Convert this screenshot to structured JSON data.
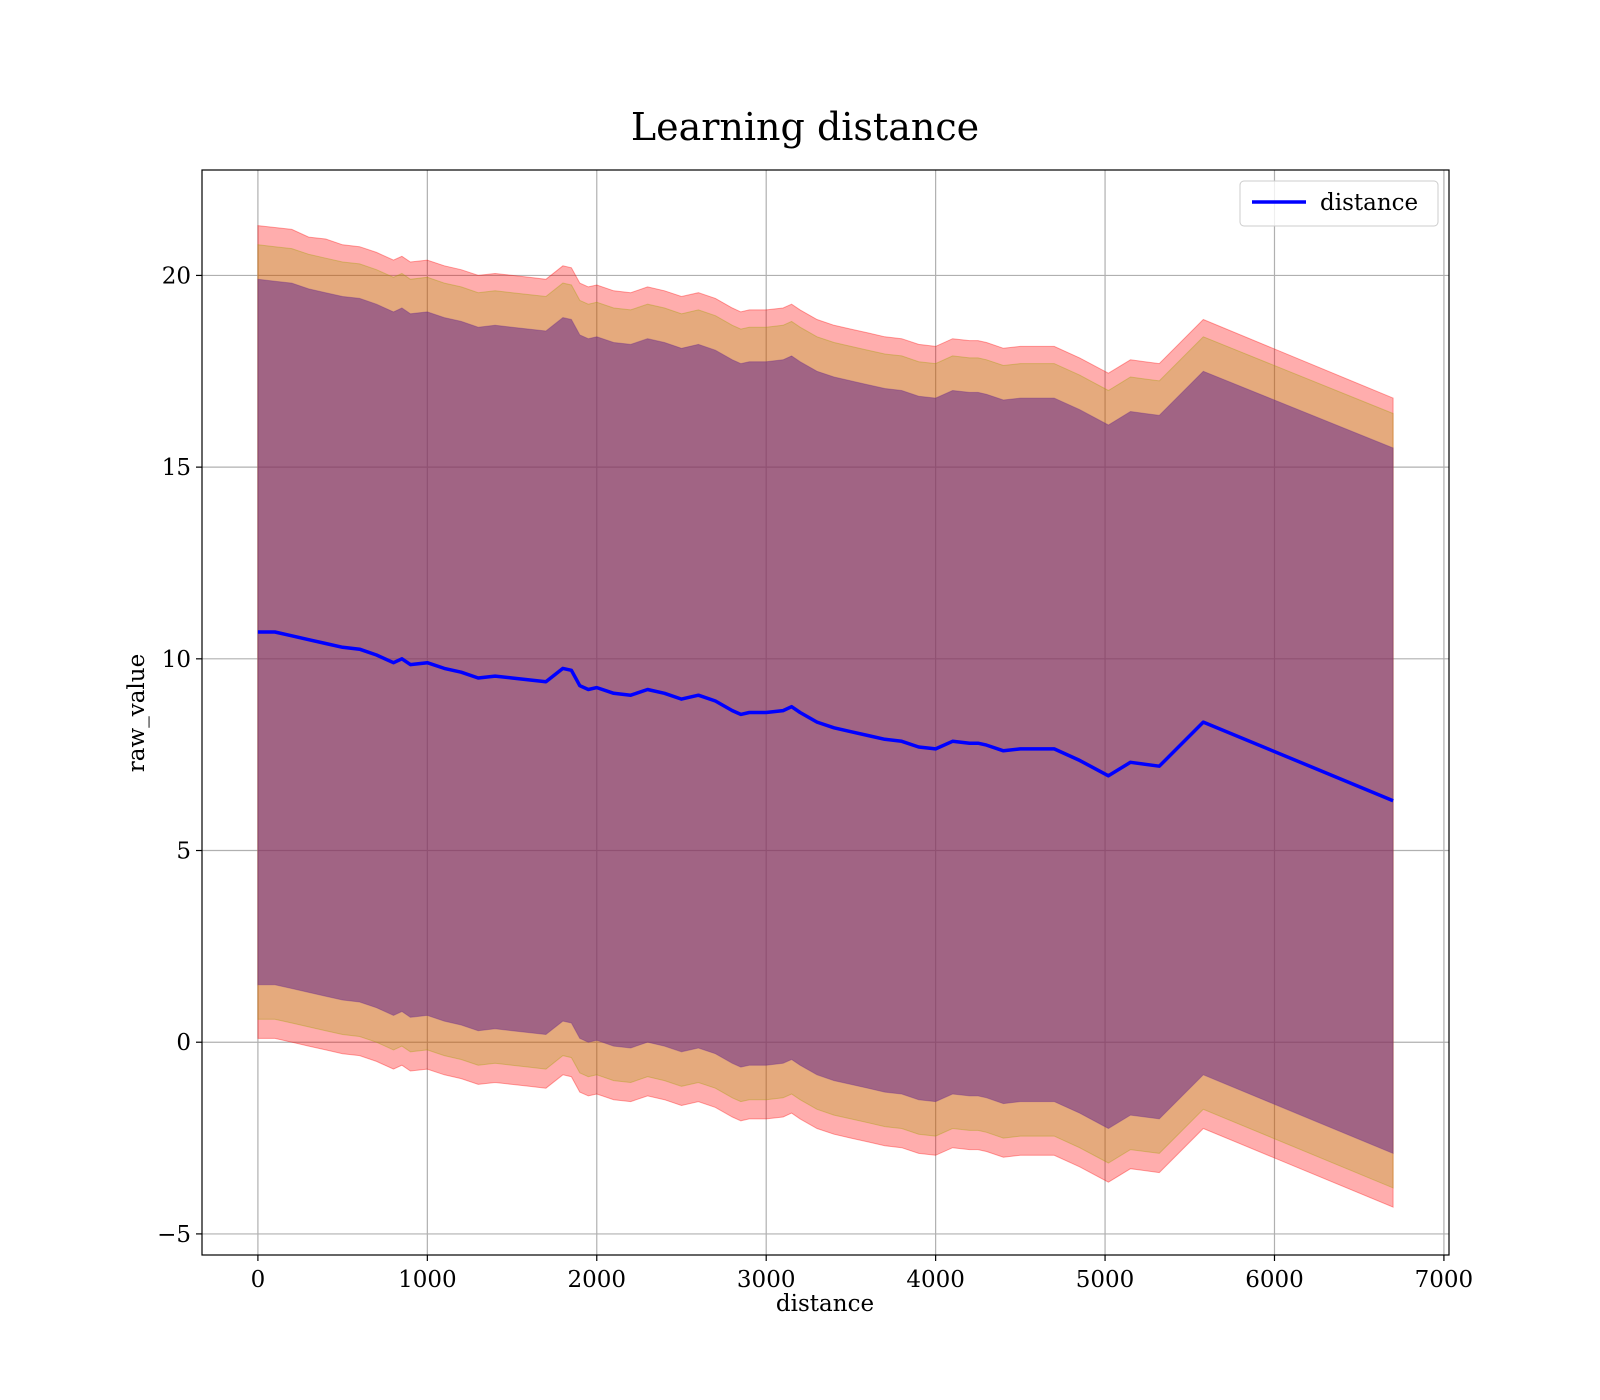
{
  "chart_data": {
    "type": "line",
    "title": "Learning distance",
    "xlabel": "distance",
    "ylabel": "raw_value",
    "xlim": [
      -330,
      7030
    ],
    "ylim": [
      -5.55,
      22.75
    ],
    "xticks": [
      0,
      1000,
      2000,
      3000,
      4000,
      5000,
      6000,
      7000
    ],
    "yticks": [
      -5,
      0,
      5,
      10,
      15,
      20
    ],
    "xtick_labels": [
      "0",
      "1000",
      "2000",
      "3000",
      "4000",
      "5000",
      "6000",
      "7000"
    ],
    "ytick_labels": [
      "−5",
      "0",
      "5",
      "10",
      "15",
      "20"
    ],
    "grid": true,
    "legend": {
      "position": "top-right",
      "entries": [
        "distance"
      ]
    },
    "colors": {
      "line": "#0000ff",
      "band_outer": "#ff0000",
      "band_mid": "#a0a000",
      "band_inner": "#6a2a8a"
    },
    "series": [
      {
        "name": "distance",
        "x": [
          0,
          100,
          200,
          300,
          400,
          500,
          600,
          700,
          800,
          850,
          900,
          1000,
          1100,
          1200,
          1300,
          1400,
          1500,
          1600,
          1700,
          1800,
          1850,
          1900,
          1950,
          2000,
          2100,
          2200,
          2300,
          2400,
          2500,
          2600,
          2700,
          2800,
          2850,
          2900,
          3000,
          3100,
          3150,
          3200,
          3300,
          3400,
          3500,
          3600,
          3700,
          3800,
          3900,
          4000,
          4100,
          4200,
          4250,
          4300,
          4400,
          4500,
          4600,
          4700,
          4850,
          5020,
          5150,
          5320,
          5580,
          6700
        ],
        "values": [
          10.7,
          10.7,
          10.6,
          10.5,
          10.4,
          10.3,
          10.25,
          10.1,
          9.9,
          10.0,
          9.85,
          9.9,
          9.75,
          9.65,
          9.5,
          9.55,
          9.5,
          9.45,
          9.4,
          9.75,
          9.7,
          9.3,
          9.2,
          9.25,
          9.1,
          9.05,
          9.2,
          9.1,
          8.95,
          9.05,
          8.9,
          8.65,
          8.55,
          8.6,
          8.6,
          8.65,
          8.75,
          8.6,
          8.35,
          8.2,
          8.1,
          8.0,
          7.9,
          7.85,
          7.7,
          7.65,
          7.85,
          7.8,
          7.8,
          7.75,
          7.6,
          7.65,
          7.65,
          7.65,
          7.35,
          6.95,
          7.3,
          7.2,
          8.35,
          6.3
        ],
        "bands": {
          "outer": {
            "upper": [
              21.3,
              21.25,
              21.2,
              21.0,
              20.95,
              20.8,
              20.75,
              20.6,
              20.4,
              20.5,
              20.35,
              20.4,
              20.25,
              20.15,
              20.0,
              20.05,
              20.0,
              19.95,
              19.9,
              20.25,
              20.2,
              19.8,
              19.7,
              19.75,
              19.6,
              19.55,
              19.7,
              19.6,
              19.45,
              19.55,
              19.4,
              19.15,
              19.05,
              19.1,
              19.1,
              19.15,
              19.25,
              19.1,
              18.85,
              18.7,
              18.6,
              18.5,
              18.4,
              18.35,
              18.2,
              18.15,
              18.35,
              18.3,
              18.3,
              18.25,
              18.1,
              18.15,
              18.15,
              18.15,
              17.85,
              17.45,
              17.8,
              17.7,
              18.85,
              16.8
            ],
            "lower": [
              0.1,
              0.1,
              0.0,
              -0.1,
              -0.2,
              -0.3,
              -0.35,
              -0.5,
              -0.7,
              -0.6,
              -0.75,
              -0.7,
              -0.85,
              -0.95,
              -1.1,
              -1.05,
              -1.1,
              -1.15,
              -1.2,
              -0.85,
              -0.9,
              -1.3,
              -1.4,
              -1.35,
              -1.5,
              -1.55,
              -1.4,
              -1.5,
              -1.65,
              -1.55,
              -1.7,
              -1.95,
              -2.05,
              -2.0,
              -2.0,
              -1.95,
              -1.85,
              -2.0,
              -2.25,
              -2.4,
              -2.5,
              -2.6,
              -2.7,
              -2.75,
              -2.9,
              -2.95,
              -2.75,
              -2.8,
              -2.8,
              -2.85,
              -3.0,
              -2.95,
              -2.95,
              -2.95,
              -3.25,
              -3.65,
              -3.3,
              -3.4,
              -2.25,
              -4.3
            ]
          },
          "middle": {
            "upper": [
              20.8,
              20.75,
              20.7,
              20.55,
              20.45,
              20.35,
              20.3,
              20.15,
              19.95,
              20.05,
              19.9,
              19.95,
              19.8,
              19.7,
              19.55,
              19.6,
              19.55,
              19.5,
              19.45,
              19.8,
              19.75,
              19.35,
              19.25,
              19.3,
              19.15,
              19.1,
              19.25,
              19.15,
              19.0,
              19.1,
              18.95,
              18.7,
              18.6,
              18.65,
              18.65,
              18.7,
              18.8,
              18.65,
              18.4,
              18.25,
              18.15,
              18.05,
              17.95,
              17.9,
              17.75,
              17.7,
              17.9,
              17.85,
              17.85,
              17.8,
              17.65,
              17.7,
              17.7,
              17.7,
              17.4,
              17.0,
              17.35,
              17.25,
              18.4,
              16.4
            ],
            "lower": [
              0.6,
              0.6,
              0.5,
              0.4,
              0.3,
              0.2,
              0.15,
              0.0,
              -0.2,
              -0.1,
              -0.25,
              -0.2,
              -0.35,
              -0.45,
              -0.6,
              -0.55,
              -0.6,
              -0.65,
              -0.7,
              -0.35,
              -0.4,
              -0.8,
              -0.9,
              -0.85,
              -1.0,
              -1.05,
              -0.9,
              -1.0,
              -1.15,
              -1.05,
              -1.2,
              -1.45,
              -1.55,
              -1.5,
              -1.5,
              -1.45,
              -1.35,
              -1.5,
              -1.75,
              -1.9,
              -2.0,
              -2.1,
              -2.2,
              -2.25,
              -2.4,
              -2.45,
              -2.25,
              -2.3,
              -2.3,
              -2.35,
              -2.5,
              -2.45,
              -2.45,
              -2.45,
              -2.75,
              -3.15,
              -2.8,
              -2.9,
              -1.75,
              -3.8
            ]
          },
          "inner": {
            "upper": [
              19.9,
              19.85,
              19.8,
              19.65,
              19.55,
              19.45,
              19.4,
              19.25,
              19.05,
              19.15,
              19.0,
              19.05,
              18.9,
              18.8,
              18.65,
              18.7,
              18.65,
              18.6,
              18.55,
              18.9,
              18.85,
              18.45,
              18.35,
              18.4,
              18.25,
              18.2,
              18.35,
              18.25,
              18.1,
              18.2,
              18.05,
              17.8,
              17.7,
              17.75,
              17.75,
              17.8,
              17.9,
              17.75,
              17.5,
              17.35,
              17.25,
              17.15,
              17.05,
              17.0,
              16.85,
              16.8,
              17.0,
              16.95,
              16.95,
              16.9,
              16.75,
              16.8,
              16.8,
              16.8,
              16.5,
              16.1,
              16.45,
              16.35,
              17.5,
              15.5
            ],
            "lower": [
              1.5,
              1.5,
              1.4,
              1.3,
              1.2,
              1.1,
              1.05,
              0.9,
              0.7,
              0.8,
              0.65,
              0.7,
              0.55,
              0.45,
              0.3,
              0.35,
              0.3,
              0.25,
              0.2,
              0.55,
              0.5,
              0.1,
              0.0,
              0.05,
              -0.1,
              -0.15,
              0.0,
              -0.1,
              -0.25,
              -0.15,
              -0.3,
              -0.55,
              -0.65,
              -0.6,
              -0.6,
              -0.55,
              -0.45,
              -0.6,
              -0.85,
              -1.0,
              -1.1,
              -1.2,
              -1.3,
              -1.35,
              -1.5,
              -1.55,
              -1.35,
              -1.4,
              -1.4,
              -1.45,
              -1.6,
              -1.55,
              -1.55,
              -1.55,
              -1.85,
              -2.25,
              -1.9,
              -2.0,
              -0.85,
              -2.9
            ]
          }
        }
      }
    ]
  }
}
